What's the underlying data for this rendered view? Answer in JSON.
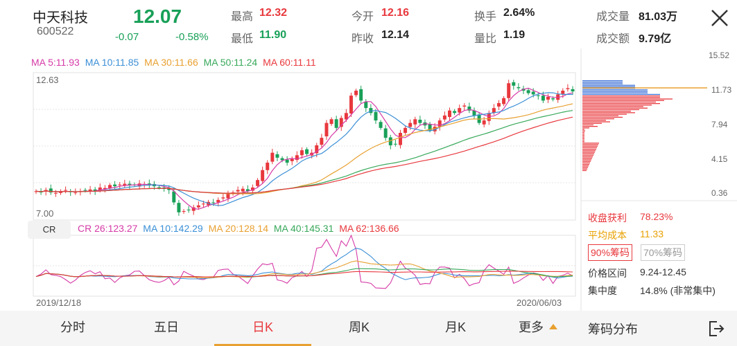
{
  "stock": {
    "name": "中天科技",
    "code": "600522",
    "price": "12.07",
    "change": "-0.07",
    "change_pct": "-0.58%"
  },
  "quotes": [
    {
      "label": "最高",
      "value": "12.32",
      "tone": "red"
    },
    {
      "label": "最低",
      "value": "11.90",
      "tone": "green"
    },
    {
      "label": "今开",
      "value": "12.16",
      "tone": "red"
    },
    {
      "label": "昨收",
      "value": "12.14",
      "tone": "plain"
    },
    {
      "label": "换手",
      "value": "2.64%",
      "tone": "plain"
    },
    {
      "label": "量比",
      "value": "1.19",
      "tone": "plain"
    },
    {
      "label": "成交量",
      "value": "81.03万",
      "tone": "plain"
    },
    {
      "label": "成交额",
      "value": "9.79亿",
      "tone": "plain"
    }
  ],
  "ma_legend": [
    {
      "text": "MA 5:11.93",
      "color": "#d63aa7"
    },
    {
      "text": "MA 10:11.85",
      "color": "#3b8fd6"
    },
    {
      "text": "MA 30:11.66",
      "color": "#e8a030"
    },
    {
      "text": "MA 50:11.24",
      "color": "#37a85a"
    },
    {
      "text": "MA 60:11.11",
      "color": "#e8383d"
    }
  ],
  "cr_button": "CR",
  "cr_legend": [
    {
      "text": "CR 26:123.27",
      "color": "#d63aa7"
    },
    {
      "text": "MA 10:142.29",
      "color": "#3b8fd6"
    },
    {
      "text": "MA 20:128.14",
      "color": "#e8a030"
    },
    {
      "text": "MA 40:145.31",
      "color": "#37a85a"
    },
    {
      "text": "MA 62:136.66",
      "color": "#e8383d"
    }
  ],
  "price_axis": {
    "top": "12.63",
    "bottom": "7.00"
  },
  "dates": {
    "start": "2019/12/18",
    "end": "2020/06/03"
  },
  "chip_axis": [
    "15.52",
    "11.73",
    "7.94",
    "4.15",
    "0.36"
  ],
  "chip_info": {
    "profit_label": "收盘获利",
    "profit_value": "78.23%",
    "avg_label": "平均成本",
    "avg_value": "11.33",
    "tab_90": "90%筹码",
    "tab_70": "70%筹码",
    "range_label": "价格区间",
    "range_value": "9.24-12.45",
    "conc_label": "集中度",
    "conc_value": "14.8% (非常集中)"
  },
  "tabs": [
    "分时",
    "五日",
    "日K",
    "周K",
    "月K",
    "更多"
  ],
  "active_tab": "日K",
  "chip_title": "筹码分布",
  "colors": {
    "up": "#e8383d",
    "down": "#18a058",
    "accent": "#e8a030"
  },
  "icons": {
    "close": "close-icon",
    "exit": "exit-icon",
    "more": "triangle-up-icon"
  }
}
